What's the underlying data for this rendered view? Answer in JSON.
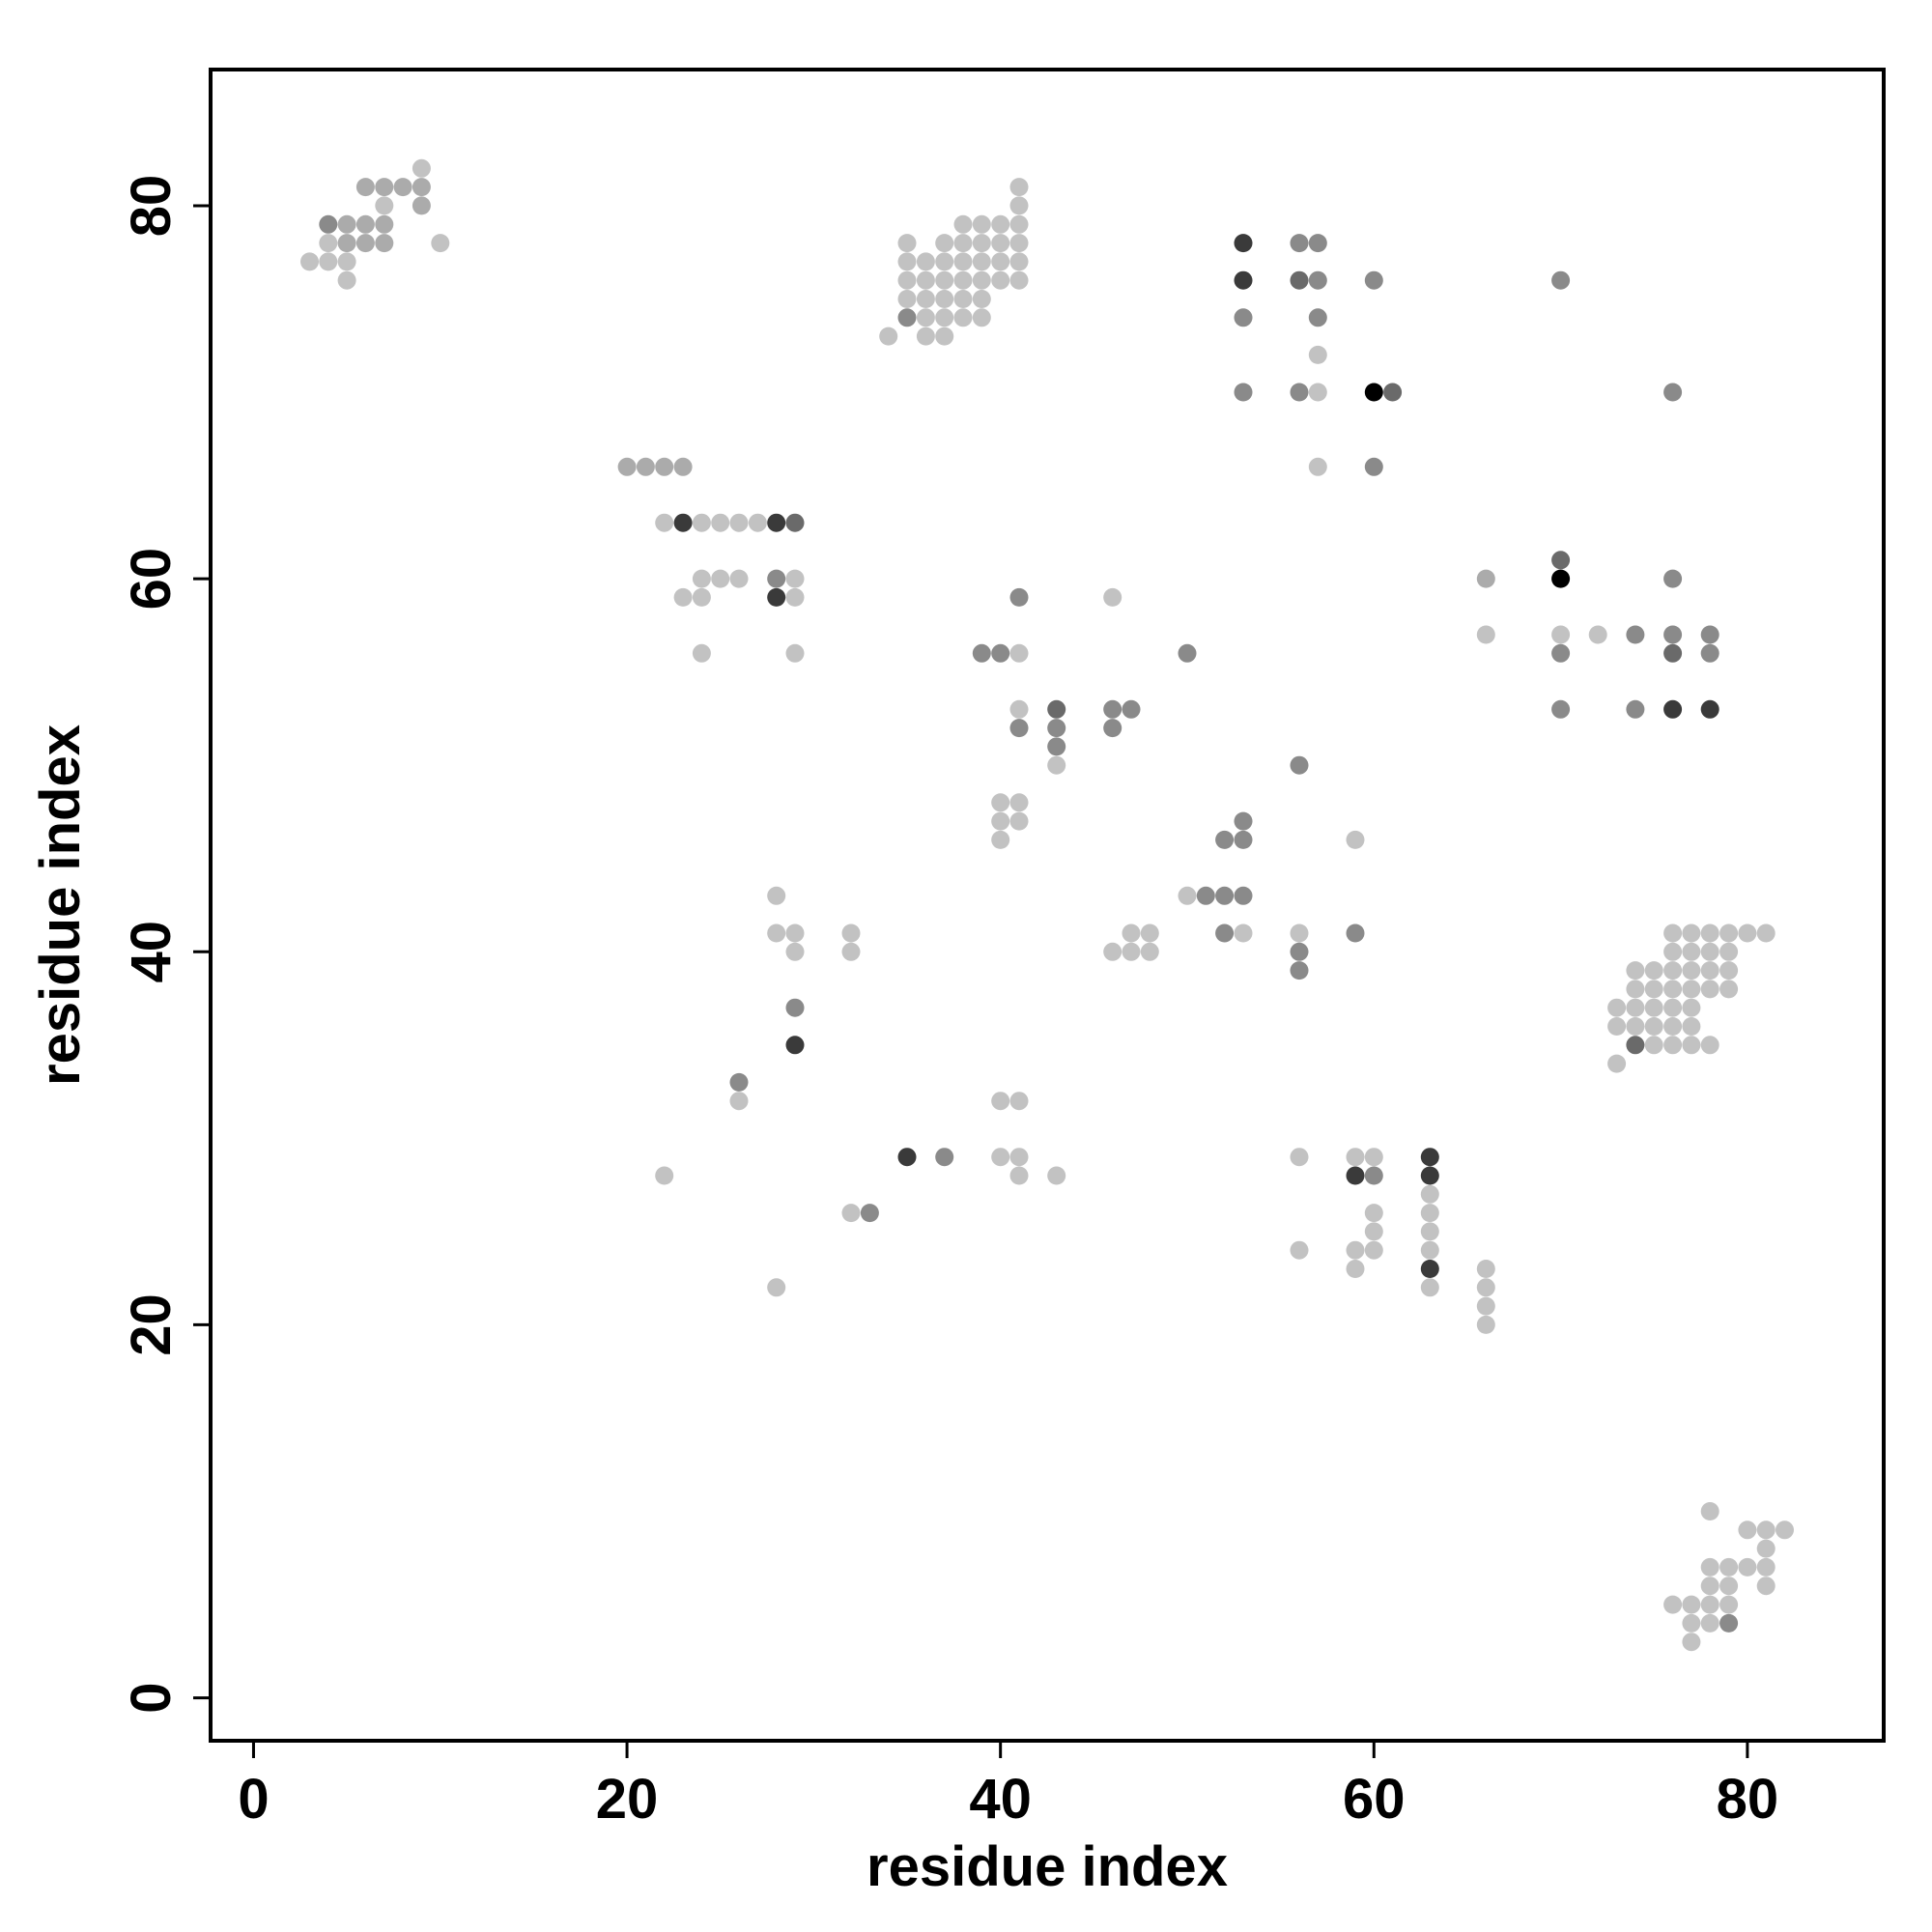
{
  "chart_data": {
    "type": "scatter",
    "title": "",
    "xlabel": "residue index",
    "ylabel": "residue index",
    "xlim": [
      -2.3,
      87.3
    ],
    "ylim": [
      -2.3,
      87.3
    ],
    "xticks": [
      0,
      20,
      40,
      60,
      80
    ],
    "yticks": [
      0,
      20,
      40,
      60,
      80
    ],
    "xtick_labels": [
      "0",
      "20",
      "40",
      "60",
      "80"
    ],
    "ytick_labels": [
      "0",
      "20",
      "40",
      "60",
      "80"
    ],
    "grid": false,
    "legend": "none",
    "marker": "filled circle",
    "color_scale": "grayscale (light = weak contact, dark = strong contact)",
    "levels": {
      "1": "#c2c2c2",
      "2": "#ababab",
      "3": "#8a8a8a",
      "4": "#6a6a6a",
      "5": "#3a3a3a",
      "6": "#000000"
    },
    "points": [
      [
        3,
        77,
        1
      ],
      [
        4,
        77,
        1
      ],
      [
        5,
        77,
        1
      ],
      [
        5,
        76,
        1
      ],
      [
        4,
        78,
        1
      ],
      [
        5,
        78,
        2
      ],
      [
        6,
        78,
        2
      ],
      [
        7,
        78,
        2
      ],
      [
        4,
        79,
        3
      ],
      [
        5,
        79,
        2
      ],
      [
        6,
        79,
        2
      ],
      [
        7,
        79,
        2
      ],
      [
        7,
        80,
        1
      ],
      [
        9,
        80,
        2
      ],
      [
        6,
        81,
        2
      ],
      [
        7,
        81,
        2
      ],
      [
        8,
        81,
        2
      ],
      [
        9,
        81,
        2
      ],
      [
        9,
        82,
        1
      ],
      [
        10,
        78,
        1
      ],
      [
        34,
        73,
        1
      ],
      [
        35,
        74,
        3
      ],
      [
        36,
        73,
        1
      ],
      [
        37,
        73,
        1
      ],
      [
        35,
        75,
        1
      ],
      [
        36,
        75,
        1
      ],
      [
        37,
        75,
        1
      ],
      [
        38,
        75,
        1
      ],
      [
        39,
        75,
        1
      ],
      [
        35,
        76,
        1
      ],
      [
        36,
        76,
        1
      ],
      [
        37,
        76,
        1
      ],
      [
        38,
        76,
        1
      ],
      [
        39,
        76,
        1
      ],
      [
        40,
        76,
        1
      ],
      [
        41,
        76,
        1
      ],
      [
        35,
        77,
        1
      ],
      [
        36,
        77,
        1
      ],
      [
        37,
        77,
        1
      ],
      [
        38,
        77,
        1
      ],
      [
        39,
        77,
        1
      ],
      [
        40,
        77,
        1
      ],
      [
        41,
        77,
        1
      ],
      [
        35,
        78,
        1
      ],
      [
        37,
        78,
        1
      ],
      [
        38,
        78,
        1
      ],
      [
        39,
        78,
        1
      ],
      [
        40,
        78,
        1
      ],
      [
        41,
        78,
        1
      ],
      [
        38,
        79,
        1
      ],
      [
        39,
        79,
        1
      ],
      [
        40,
        79,
        1
      ],
      [
        41,
        79,
        1
      ],
      [
        41,
        80,
        1
      ],
      [
        41,
        81,
        1
      ],
      [
        36,
        74,
        1
      ],
      [
        37,
        74,
        1
      ],
      [
        38,
        74,
        1
      ],
      [
        39,
        74,
        1
      ],
      [
        53,
        78,
        5
      ],
      [
        56,
        78,
        3
      ],
      [
        57,
        78,
        3
      ],
      [
        53,
        76,
        5
      ],
      [
        56,
        76,
        4
      ],
      [
        57,
        76,
        3
      ],
      [
        60,
        76,
        3
      ],
      [
        70,
        76,
        3
      ],
      [
        53,
        74,
        3
      ],
      [
        57,
        74,
        3
      ],
      [
        57,
        72,
        1
      ],
      [
        53,
        70,
        3
      ],
      [
        56,
        70,
        3
      ],
      [
        57,
        70,
        1
      ],
      [
        60,
        70,
        6
      ],
      [
        61,
        70,
        4
      ],
      [
        76,
        70,
        3
      ],
      [
        57,
        66,
        1
      ],
      [
        60,
        66,
        3
      ],
      [
        20,
        66,
        2
      ],
      [
        21,
        66,
        2
      ],
      [
        22,
        66,
        2
      ],
      [
        23,
        66,
        2
      ],
      [
        22,
        63,
        1
      ],
      [
        23,
        63,
        5
      ],
      [
        24,
        63,
        1
      ],
      [
        25,
        63,
        1
      ],
      [
        26,
        63,
        1
      ],
      [
        27,
        63,
        1
      ],
      [
        28,
        63,
        5
      ],
      [
        29,
        63,
        4
      ],
      [
        24,
        60,
        1
      ],
      [
        25,
        60,
        1
      ],
      [
        26,
        60,
        1
      ],
      [
        28,
        60,
        3
      ],
      [
        29,
        60,
        1
      ],
      [
        23,
        59,
        1
      ],
      [
        24,
        59,
        1
      ],
      [
        28,
        59,
        5
      ],
      [
        29,
        59,
        1
      ],
      [
        24,
        56,
        1
      ],
      [
        29,
        56,
        1
      ],
      [
        39,
        56,
        3
      ],
      [
        40,
        56,
        3
      ],
      [
        41,
        56,
        1
      ],
      [
        41,
        59,
        3
      ],
      [
        46,
        59,
        1
      ],
      [
        50,
        56,
        3
      ],
      [
        41,
        53,
        1
      ],
      [
        43,
        53,
        4
      ],
      [
        46,
        53,
        3
      ],
      [
        47,
        53,
        3
      ],
      [
        41,
        52,
        3
      ],
      [
        43,
        52,
        3
      ],
      [
        46,
        52,
        3
      ],
      [
        43,
        51,
        3
      ],
      [
        43,
        50,
        1
      ],
      [
        40,
        48,
        1
      ],
      [
        41,
        48,
        1
      ],
      [
        40,
        47,
        1
      ],
      [
        41,
        47,
        1
      ],
      [
        40,
        46,
        1
      ],
      [
        66,
        60,
        2
      ],
      [
        66,
        57,
        1
      ],
      [
        70,
        61,
        4
      ],
      [
        70,
        60,
        6
      ],
      [
        70,
        57,
        1
      ],
      [
        70,
        56,
        3
      ],
      [
        70,
        53,
        3
      ],
      [
        72,
        57,
        1
      ],
      [
        74,
        57,
        3
      ],
      [
        74,
        53,
        3
      ],
      [
        76,
        60,
        3
      ],
      [
        76,
        57,
        3
      ],
      [
        76,
        56,
        4
      ],
      [
        76,
        53,
        5
      ],
      [
        78,
        57,
        3
      ],
      [
        78,
        56,
        3
      ],
      [
        78,
        53,
        5
      ],
      [
        56,
        50,
        3
      ],
      [
        52,
        46,
        3
      ],
      [
        53,
        46,
        3
      ],
      [
        53,
        47,
        3
      ],
      [
        59,
        46,
        1
      ],
      [
        50,
        43,
        1
      ],
      [
        51,
        43,
        3
      ],
      [
        52,
        43,
        3
      ],
      [
        53,
        43,
        3
      ],
      [
        52,
        41,
        3
      ],
      [
        53,
        41,
        1
      ],
      [
        56,
        41,
        1
      ],
      [
        59,
        41,
        3
      ],
      [
        56,
        40,
        3
      ],
      [
        56,
        39,
        3
      ],
      [
        28,
        43,
        1
      ],
      [
        28,
        41,
        1
      ],
      [
        29,
        41,
        1
      ],
      [
        29,
        40,
        1
      ],
      [
        32,
        41,
        1
      ],
      [
        32,
        40,
        1
      ],
      [
        29,
        37,
        3
      ],
      [
        29,
        35,
        5
      ],
      [
        46,
        40,
        1
      ],
      [
        47,
        40,
        1
      ],
      [
        48,
        40,
        1
      ],
      [
        47,
        41,
        1
      ],
      [
        48,
        41,
        1
      ],
      [
        73,
        37,
        1
      ],
      [
        73,
        36,
        1
      ],
      [
        73,
        34,
        1
      ],
      [
        74,
        39,
        1
      ],
      [
        74,
        38,
        1
      ],
      [
        74,
        37,
        1
      ],
      [
        74,
        36,
        1
      ],
      [
        74,
        35,
        4
      ],
      [
        75,
        39,
        1
      ],
      [
        75,
        38,
        1
      ],
      [
        75,
        37,
        1
      ],
      [
        75,
        36,
        1
      ],
      [
        75,
        35,
        1
      ],
      [
        76,
        41,
        1
      ],
      [
        76,
        40,
        1
      ],
      [
        76,
        39,
        1
      ],
      [
        76,
        38,
        1
      ],
      [
        76,
        37,
        1
      ],
      [
        76,
        36,
        1
      ],
      [
        76,
        35,
        1
      ],
      [
        77,
        41,
        1
      ],
      [
        77,
        40,
        1
      ],
      [
        77,
        39,
        1
      ],
      [
        77,
        38,
        1
      ],
      [
        77,
        37,
        1
      ],
      [
        77,
        36,
        1
      ],
      [
        77,
        35,
        1
      ],
      [
        78,
        41,
        1
      ],
      [
        78,
        40,
        1
      ],
      [
        78,
        39,
        1
      ],
      [
        78,
        38,
        1
      ],
      [
        78,
        35,
        1
      ],
      [
        79,
        41,
        1
      ],
      [
        79,
        40,
        1
      ],
      [
        79,
        39,
        1
      ],
      [
        79,
        38,
        1
      ],
      [
        80,
        41,
        1
      ],
      [
        81,
        41,
        1
      ],
      [
        26,
        33,
        3
      ],
      [
        26,
        32,
        1
      ],
      [
        22,
        28,
        1
      ],
      [
        28,
        22,
        1
      ],
      [
        32,
        26,
        1
      ],
      [
        33,
        26,
        3
      ],
      [
        35,
        29,
        5
      ],
      [
        37,
        29,
        3
      ],
      [
        40,
        32,
        1
      ],
      [
        41,
        32,
        1
      ],
      [
        40,
        29,
        1
      ],
      [
        41,
        29,
        1
      ],
      [
        41,
        28,
        1
      ],
      [
        43,
        28,
        1
      ],
      [
        56,
        29,
        1
      ],
      [
        56,
        24,
        1
      ],
      [
        59,
        29,
        1
      ],
      [
        59,
        28,
        5
      ],
      [
        59,
        24,
        1
      ],
      [
        59,
        23,
        1
      ],
      [
        60,
        29,
        1
      ],
      [
        60,
        28,
        3
      ],
      [
        60,
        26,
        1
      ],
      [
        60,
        25,
        1
      ],
      [
        60,
        24,
        1
      ],
      [
        63,
        29,
        5
      ],
      [
        63,
        28,
        5
      ],
      [
        63,
        27,
        1
      ],
      [
        63,
        26,
        1
      ],
      [
        63,
        25,
        1
      ],
      [
        63,
        24,
        1
      ],
      [
        63,
        23,
        5
      ],
      [
        63,
        22,
        1
      ],
      [
        66,
        23,
        1
      ],
      [
        66,
        22,
        1
      ],
      [
        66,
        21,
        1
      ],
      [
        66,
        20,
        1
      ],
      [
        76,
        5,
        1
      ],
      [
        77,
        5,
        1
      ],
      [
        78,
        5,
        1
      ],
      [
        79,
        5,
        1
      ],
      [
        77,
        4,
        1
      ],
      [
        78,
        4,
        1
      ],
      [
        79,
        4,
        3
      ],
      [
        77,
        3,
        1
      ],
      [
        78,
        7,
        1
      ],
      [
        79,
        7,
        1
      ],
      [
        80,
        7,
        1
      ],
      [
        81,
        7,
        1
      ],
      [
        78,
        6,
        1
      ],
      [
        79,
        6,
        1
      ],
      [
        81,
        6,
        1
      ],
      [
        81,
        8,
        1
      ],
      [
        80,
        9,
        1
      ],
      [
        81,
        9,
        1
      ],
      [
        82,
        9,
        1
      ],
      [
        78,
        10,
        1
      ]
    ]
  }
}
